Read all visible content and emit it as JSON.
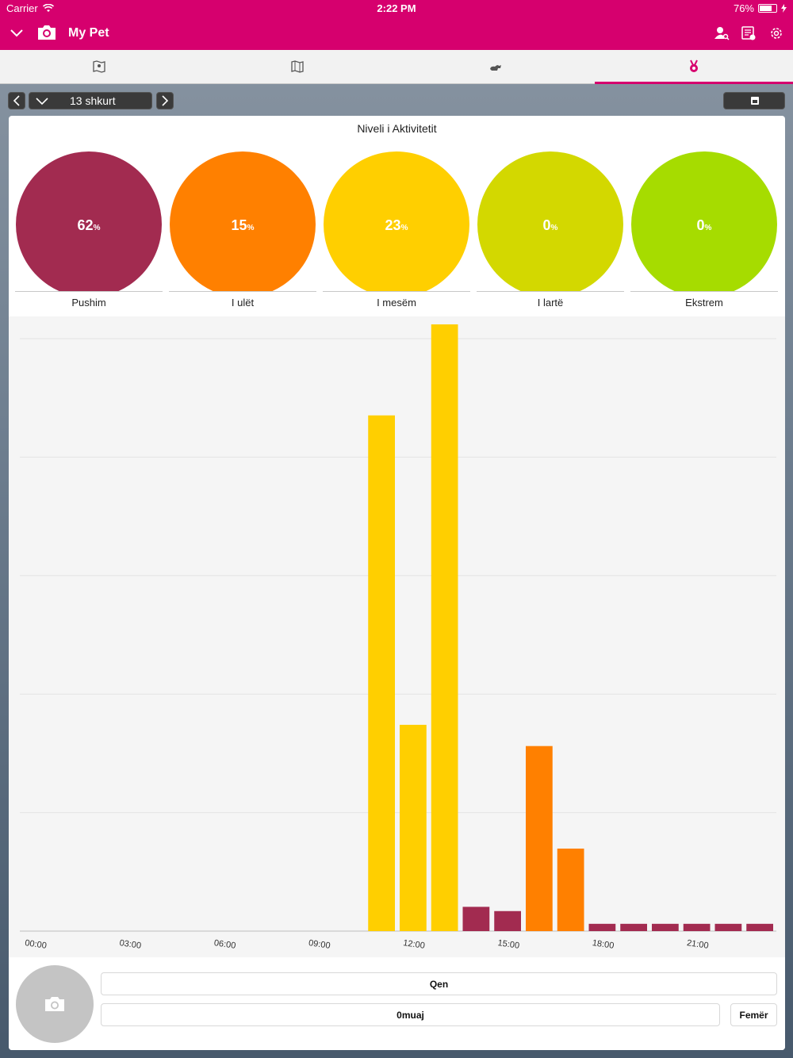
{
  "status_bar": {
    "carrier": "Carrier",
    "time": "2:22 PM",
    "battery": "76%",
    "battery_level": 0.76
  },
  "app_bar": {
    "title": "My Pet"
  },
  "date_nav": {
    "date": "13 shkurt"
  },
  "card": {
    "title": "Niveli i Aktivitetit",
    "levels": [
      {
        "name": "Pushim",
        "value": "62",
        "unit": "%",
        "color": "#a22b50"
      },
      {
        "name": "I ulët",
        "value": "15",
        "unit": "%",
        "color": "#ff8000"
      },
      {
        "name": "I mesëm",
        "value": "23",
        "unit": "%",
        "color": "#ffcf00"
      },
      {
        "name": "I lartë",
        "value": "0",
        "unit": "%",
        "color": "#d3d800"
      },
      {
        "name": "Ekstrem",
        "value": "0",
        "unit": "%",
        "color": "#a6dc00"
      }
    ]
  },
  "chart_data": {
    "type": "bar",
    "x_tick_labels": [
      "00:00",
      "03:00",
      "06:00",
      "09:00",
      "12:00",
      "15:00",
      "18:00",
      "21:00"
    ],
    "x_range_hours": [
      0,
      24
    ],
    "bar_width_hours": 1,
    "grid": true,
    "colors": {
      "Pushim": "#a22b50",
      "I ulët": "#ff8000",
      "I mesëm": "#ffcf00"
    },
    "bars": [
      {
        "start_hour": 11,
        "value": 85,
        "level": "I mesëm"
      },
      {
        "start_hour": 12,
        "value": 34,
        "level": "I mesëm"
      },
      {
        "start_hour": 13,
        "value": 100,
        "level": "I mesëm"
      },
      {
        "start_hour": 14,
        "value": 4,
        "level": "Pushim"
      },
      {
        "start_hour": 15,
        "value": 3.3,
        "level": "Pushim"
      },
      {
        "start_hour": 16,
        "value": 30.5,
        "level": "I ulët"
      },
      {
        "start_hour": 17,
        "value": 13.6,
        "level": "I ulët"
      },
      {
        "start_hour": 18,
        "value": 1.2,
        "level": "Pushim"
      },
      {
        "start_hour": 19,
        "value": 1.2,
        "level": "Pushim"
      },
      {
        "start_hour": 20,
        "value": 1.2,
        "level": "Pushim"
      },
      {
        "start_hour": 21,
        "value": 1.2,
        "level": "Pushim"
      },
      {
        "start_hour": 22,
        "value": 1.2,
        "level": "Pushim"
      },
      {
        "start_hour": 23,
        "value": 1.2,
        "level": "Pushim"
      }
    ],
    "ylim": [
      0,
      100
    ]
  },
  "pet": {
    "type": "Qen",
    "age": "0muaj",
    "gender": "Femër"
  }
}
